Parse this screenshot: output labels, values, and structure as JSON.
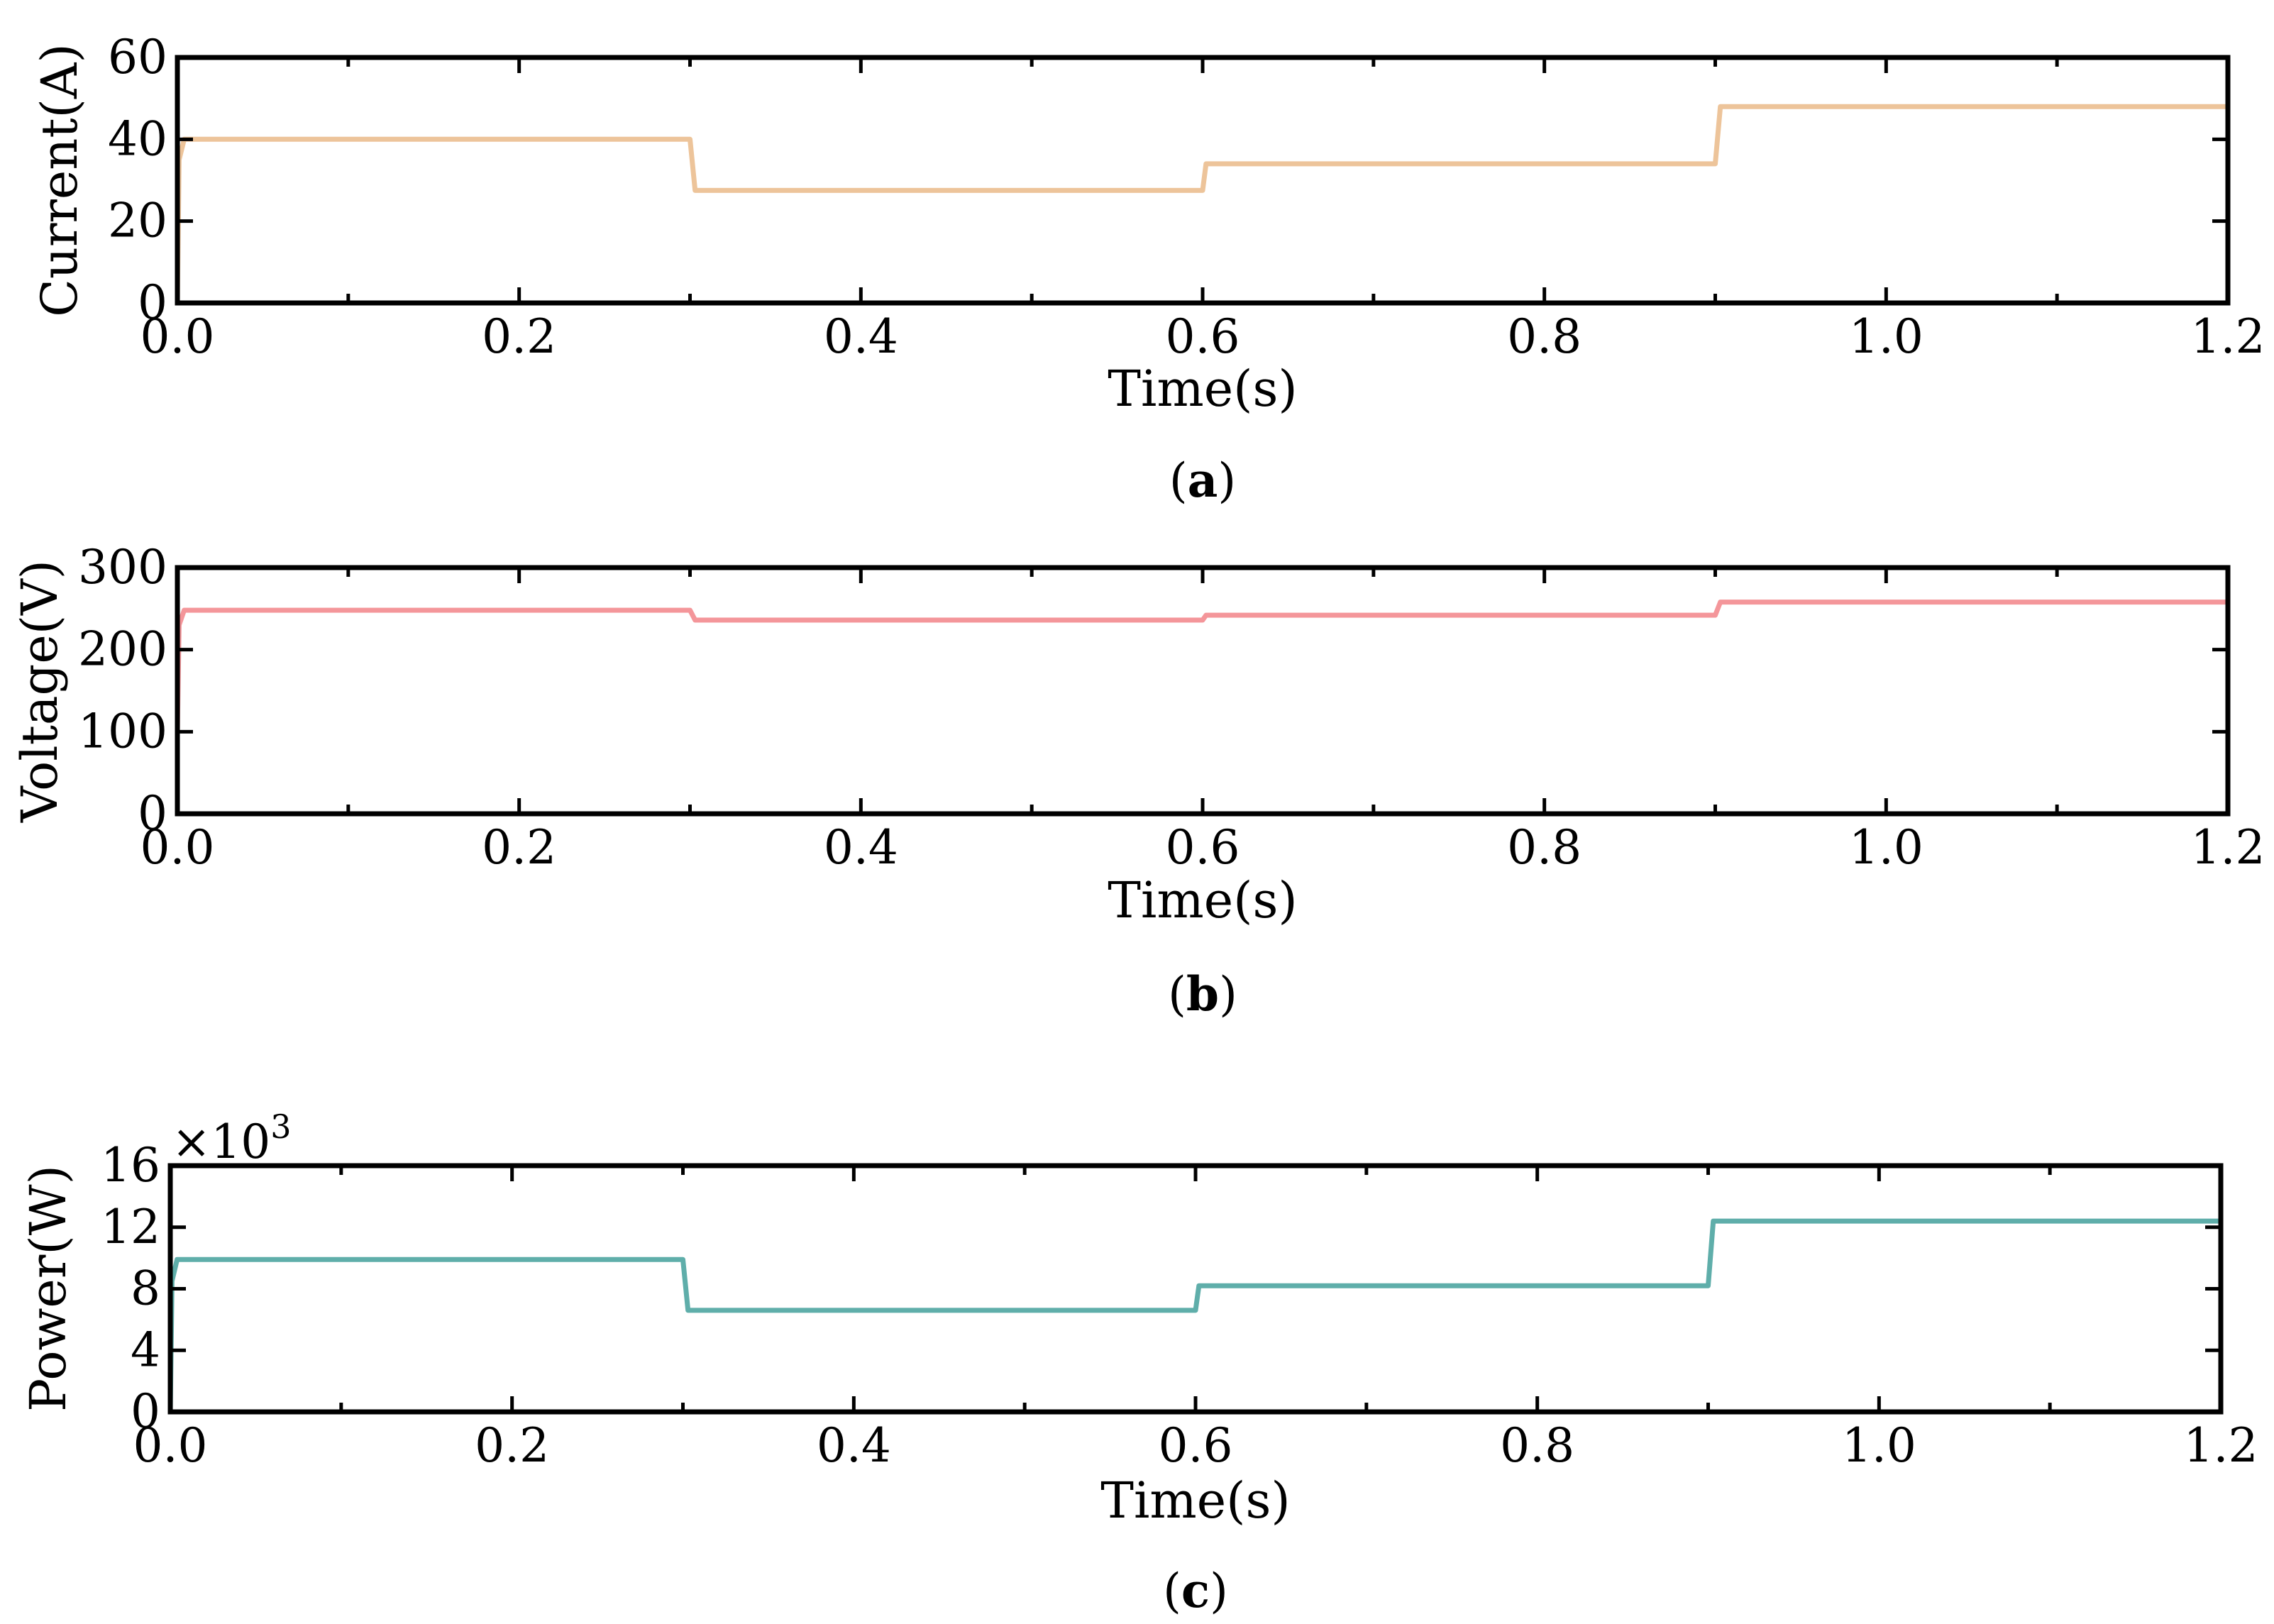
{
  "chart_data": [
    {
      "id": "a",
      "type": "line",
      "caption_letter": "a",
      "xlabel": "Time(s)",
      "ylabel": "Current(A)",
      "xlim": [
        0,
        1.2
      ],
      "ylim": [
        0,
        60
      ],
      "xticks": [
        0.0,
        0.2,
        0.4,
        0.6,
        0.8,
        1.0,
        1.2
      ],
      "xtick_labels": [
        "0.0",
        "0.2",
        "0.4",
        "0.6",
        "0.8",
        "1.0",
        "1.2"
      ],
      "yticks": [
        0,
        20,
        40,
        60
      ],
      "ytick_labels": [
        "0",
        "20",
        "40",
        "60"
      ],
      "multiplier": "",
      "series": [
        {
          "name": "Current",
          "color": "#EDC49A",
          "x": [
            0,
            0.001,
            0.004,
            0.3,
            0.303,
            0.6,
            0.602,
            0.9,
            0.903,
            1.2
          ],
          "y": [
            0,
            35,
            40,
            40,
            27.5,
            27.5,
            34,
            34,
            48,
            48
          ]
        }
      ]
    },
    {
      "id": "b",
      "type": "line",
      "caption_letter": "b",
      "xlabel": "Time(s)",
      "ylabel": "Voltage(V)",
      "xlim": [
        0,
        1.2
      ],
      "ylim": [
        0,
        300
      ],
      "xticks": [
        0.0,
        0.2,
        0.4,
        0.6,
        0.8,
        1.0,
        1.2
      ],
      "xtick_labels": [
        "0.0",
        "0.2",
        "0.4",
        "0.6",
        "0.8",
        "1.0",
        "1.2"
      ],
      "yticks": [
        0,
        100,
        200,
        300
      ],
      "ytick_labels": [
        "0",
        "100",
        "200",
        "300"
      ],
      "multiplier": "",
      "series": [
        {
          "name": "Voltage",
          "color": "#F4969A",
          "x": [
            0,
            0.001,
            0.004,
            0.3,
            0.303,
            0.6,
            0.602,
            0.9,
            0.903,
            1.2
          ],
          "y": [
            100,
            230,
            248,
            248,
            236,
            236,
            242,
            242,
            258,
            258
          ]
        }
      ]
    },
    {
      "id": "c",
      "type": "line",
      "caption_letter": "c",
      "xlabel": "Time(s)",
      "ylabel": "Power(W)",
      "xlim": [
        0,
        1.2
      ],
      "ylim": [
        0,
        16
      ],
      "xticks": [
        0.0,
        0.2,
        0.4,
        0.6,
        0.8,
        1.0,
        1.2
      ],
      "xtick_labels": [
        "0.0",
        "0.2",
        "0.4",
        "0.6",
        "0.8",
        "1.0",
        "1.2"
      ],
      "yticks": [
        0,
        4,
        8,
        12,
        16
      ],
      "ytick_labels": [
        "0",
        "4",
        "8",
        "12",
        "16"
      ],
      "multiplier": "×10",
      "multiplier_exponent": "3",
      "series": [
        {
          "name": "Power",
          "color": "#5FAEAA",
          "x": [
            0,
            0.001,
            0.004,
            0.3,
            0.303,
            0.6,
            0.602,
            0.9,
            0.903,
            1.2
          ],
          "y": [
            0,
            8.5,
            9.9,
            9.9,
            6.6,
            6.6,
            8.2,
            8.2,
            12.4,
            12.4
          ]
        }
      ]
    }
  ]
}
